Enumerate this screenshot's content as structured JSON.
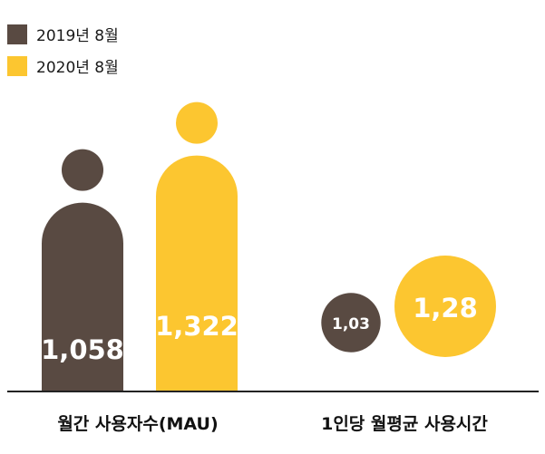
{
  "colors": {
    "y2019": "#594a42",
    "y2020": "#fcc630",
    "axis": "#222222"
  },
  "chart_data": {
    "type": "bar",
    "series": [
      {
        "name": "2019년 8월",
        "color": "#594a42"
      },
      {
        "name": "2020년 8월",
        "color": "#fcc630"
      }
    ],
    "groups": [
      {
        "label": "월간 사용자수(MAU)",
        "shape": "person-bar",
        "values": [
          1058,
          1322
        ],
        "value_labels": [
          "1,058",
          "1,322"
        ]
      },
      {
        "label": "1인당 월평균 사용시간",
        "shape": "circle",
        "values": [
          1.03,
          1.28
        ],
        "value_labels": [
          "1,03",
          "1,28"
        ]
      }
    ],
    "legend_position": "top-left",
    "grid": false
  }
}
